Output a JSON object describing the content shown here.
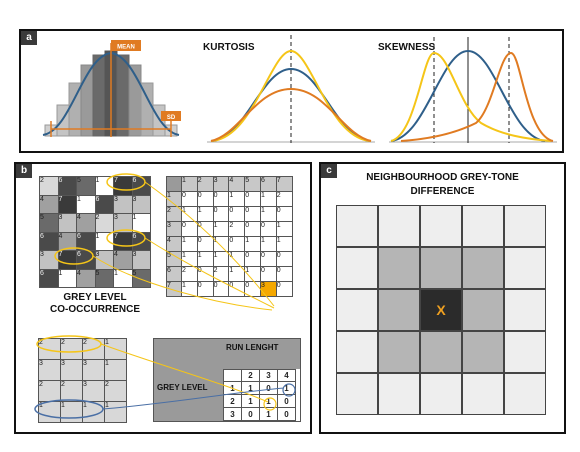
{
  "panel_a": {
    "tag": "a",
    "histogram": {
      "mean_label": "MEAN",
      "sd_label": "SD"
    },
    "kurtosis": {
      "title": "KURTOSIS"
    },
    "skewness": {
      "title": "SKEWNESS"
    },
    "colors": {
      "blue": "#2f5f8a",
      "orange": "#e07b22",
      "yellow": "#f5c518"
    }
  },
  "panel_b": {
    "tag": "b",
    "glcm": {
      "title_line1": "GREY LEVEL",
      "title_line2": "CO-OCCURRENCE",
      "image": [
        [
          "2",
          "6",
          "5",
          "1",
          "7",
          "6"
        ],
        [
          "4",
          "7",
          "1",
          "6",
          "3",
          "3"
        ],
        [
          "5",
          "3",
          "4",
          "2",
          "3",
          "1"
        ],
        [
          "6",
          "4",
          "6",
          "1",
          "7",
          "6"
        ],
        [
          "3",
          "7",
          "6",
          "3",
          "4",
          "3"
        ],
        [
          "6",
          "1",
          "4",
          "5",
          "1",
          "5"
        ]
      ],
      "image_shades": [
        [
          "#d9d9d9",
          "#4a4a4a",
          "#6a6a6a",
          "#ffffff",
          "#3a3a3a",
          "#4a4a4a"
        ],
        [
          "#a0a0a0",
          "#3a3a3a",
          "#ffffff",
          "#4a4a4a",
          "#c2c2c2",
          "#c2c2c2"
        ],
        [
          "#6a6a6a",
          "#c2c2c2",
          "#a0a0a0",
          "#d9d9d9",
          "#c2c2c2",
          "#ffffff"
        ],
        [
          "#4a4a4a",
          "#a0a0a0",
          "#4a4a4a",
          "#ffffff",
          "#3a3a3a",
          "#4a4a4a"
        ],
        [
          "#c2c2c2",
          "#3a3a3a",
          "#4a4a4a",
          "#c2c2c2",
          "#a0a0a0",
          "#c2c2c2"
        ],
        [
          "#4a4a4a",
          "#ffffff",
          "#a0a0a0",
          "#6a6a6a",
          "#ffffff",
          "#6a6a6a"
        ]
      ],
      "matrix_header": [
        "1",
        "2",
        "3",
        "4",
        "5",
        "6",
        "7"
      ],
      "matrix_rows": [
        {
          "label": "1",
          "values": [
            "0",
            "0",
            "0",
            "1",
            "0",
            "1",
            "2"
          ]
        },
        {
          "label": "2",
          "values": [
            "1",
            "1",
            "0",
            "0",
            "0",
            "1",
            "0"
          ]
        },
        {
          "label": "3",
          "values": [
            "0",
            "0",
            "1",
            "2",
            "0",
            "0",
            "1"
          ]
        },
        {
          "label": "4",
          "values": [
            "1",
            "0",
            "1",
            "0",
            "1",
            "1",
            "1"
          ]
        },
        {
          "label": "5",
          "values": [
            "1",
            "1",
            "1",
            "1",
            "0",
            "0",
            "0"
          ]
        },
        {
          "label": "6",
          "values": [
            "2",
            "0",
            "2",
            "1",
            "1",
            "0",
            "0"
          ]
        },
        {
          "label": "7",
          "values": [
            "1",
            "0",
            "0",
            "0",
            "0",
            "3",
            "0"
          ]
        }
      ],
      "highlight_value": "3"
    },
    "glrlm": {
      "image": [
        [
          "2",
          "2",
          "2",
          "1"
        ],
        [
          "3",
          "3",
          "3",
          "1"
        ],
        [
          "2",
          "2",
          "3",
          "2"
        ],
        [
          "1",
          "1",
          "1",
          "1"
        ]
      ],
      "run_length_label": "RUN LENGHT",
      "grey_level_label": "GREY LEVEL",
      "run_header": [
        "2",
        "3",
        "4"
      ],
      "rows": [
        {
          "label": "1",
          "values": [
            "1",
            "0",
            "1"
          ]
        },
        {
          "label": "2",
          "values": [
            "1",
            "1",
            "0"
          ]
        },
        {
          "label": "3",
          "values": [
            "0",
            "1",
            "0"
          ]
        }
      ]
    }
  },
  "panel_c": {
    "tag": "c",
    "title_line1": "NEIGHBOURHOOD GREY-TONE",
    "title_line2": "DIFFERENCE",
    "center_label": "X",
    "colors": {
      "outer": "#eeeeee",
      "ring": "#b5b5b5",
      "center": "#2b2b2b",
      "center_text": "#f0a020"
    }
  }
}
